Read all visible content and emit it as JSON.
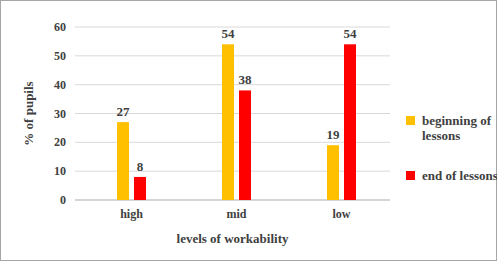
{
  "chart_data": {
    "type": "bar",
    "categories": [
      "high",
      "mid",
      "low"
    ],
    "series": [
      {
        "name": "beginning of lessons",
        "color": "#ffc000",
        "values": [
          27,
          54,
          19
        ]
      },
      {
        "name": "end of lessons",
        "color": "#ff0000",
        "values": [
          8,
          38,
          54
        ]
      }
    ],
    "x_label": "levels of workability",
    "y_label": "% of pupils",
    "ylim": [
      0,
      60
    ],
    "yticks": [
      0,
      10,
      20,
      30,
      40,
      50,
      60
    ],
    "grid": true,
    "legend": "right",
    "data_labels": true
  }
}
